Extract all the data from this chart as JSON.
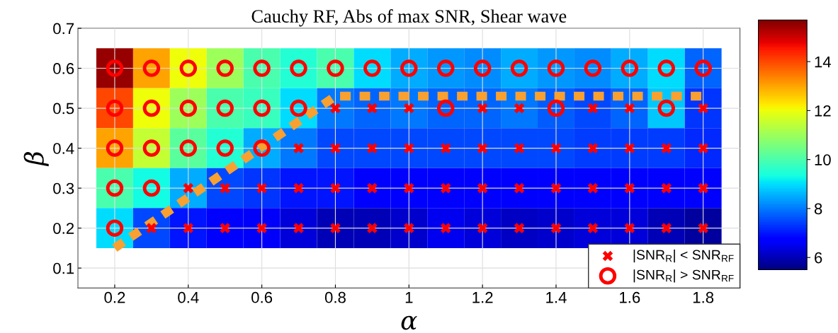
{
  "chart_data": {
    "type": "heatmap",
    "title": "Cauchy RF, Abs of max SNR, Shear wave",
    "xlabel": "α",
    "ylabel": "β",
    "x": [
      0.2,
      0.3,
      0.4,
      0.5,
      0.6,
      0.7,
      0.8,
      0.9,
      1.0,
      1.1,
      1.2,
      1.3,
      1.4,
      1.5,
      1.6,
      1.7,
      1.8
    ],
    "y": [
      0.6,
      0.5,
      0.4,
      0.3,
      0.2
    ],
    "cells": [
      [
        15.5,
        13,
        12,
        11,
        10,
        9.5,
        10,
        9,
        8.5,
        8.3,
        8.2,
        8.5,
        8.3,
        8.2,
        8.5,
        9,
        7.8
      ],
      [
        14,
        12,
        11,
        10,
        9.8,
        9,
        8,
        7.8,
        8,
        7.8,
        7.8,
        8,
        7.7,
        7.5,
        7.8,
        8.8,
        7.3
      ],
      [
        13,
        11.5,
        10.2,
        9.5,
        8.5,
        8,
        7.5,
        7.5,
        7.5,
        7.5,
        7.5,
        7.5,
        7.5,
        7.4,
        7.4,
        7.4,
        7.2
      ],
      [
        10,
        9.3,
        8.5,
        7.5,
        7.3,
        7,
        7,
        6.8,
        6.8,
        6.8,
        6.8,
        6.8,
        6.8,
        6.8,
        6.8,
        6.8,
        6.8
      ],
      [
        9,
        7.5,
        7,
        6.8,
        6.6,
        6.3,
        6,
        6,
        6.2,
        6.5,
        6.3,
        6.1,
        6.2,
        6.3,
        6.3,
        6.0,
        5.8
      ]
    ],
    "clim": [
      5.5,
      15.7
    ],
    "cticks": [
      6,
      8,
      10,
      12,
      14
    ],
    "series": [
      {
        "type": "scatter",
        "name": "|SNR$_{R}$| < SNR$_{RF}$",
        "color": "#ff0000",
        "marker": "cross",
        "x": [
          0.3,
          0.4,
          0.5,
          0.6,
          0.7,
          0.8,
          0.9,
          1.0,
          1.1,
          1.2,
          1.3,
          1.4,
          1.5,
          1.6,
          1.7,
          1.8,
          0.4,
          0.5,
          0.6,
          0.7,
          0.8,
          0.9,
          1.0,
          1.1,
          1.2,
          1.3,
          1.4,
          1.5,
          1.6,
          1.7,
          1.8,
          0.7,
          0.8,
          0.9,
          1.0,
          1.1,
          1.2,
          1.3,
          1.4,
          1.5,
          1.6,
          1.7,
          1.8,
          0.8,
          0.9,
          1.0,
          1.2,
          1.3,
          1.5,
          1.6,
          1.8
        ],
        "values": [
          0.2,
          0.2,
          0.2,
          0.2,
          0.2,
          0.2,
          0.2,
          0.2,
          0.2,
          0.2,
          0.2,
          0.2,
          0.2,
          0.2,
          0.2,
          0.2,
          0.3,
          0.3,
          0.3,
          0.3,
          0.3,
          0.3,
          0.3,
          0.3,
          0.3,
          0.3,
          0.3,
          0.3,
          0.3,
          0.3,
          0.3,
          0.4,
          0.4,
          0.4,
          0.4,
          0.4,
          0.4,
          0.4,
          0.4,
          0.4,
          0.4,
          0.4,
          0.4,
          0.5,
          0.5,
          0.5,
          0.5,
          0.5,
          0.5,
          0.5,
          0.5
        ]
      },
      {
        "type": "scatter",
        "name": "|SNR$_{R}$| > SNR$_{RF}$",
        "color": "#ff0000",
        "marker": "circle",
        "x": [
          0.2,
          0.2,
          0.3,
          0.2,
          0.3,
          0.4,
          0.5,
          0.6,
          0.2,
          0.3,
          0.4,
          0.5,
          0.6,
          0.7,
          1.1,
          1.4,
          1.7,
          0.2,
          0.3,
          0.4,
          0.5,
          0.6,
          0.7,
          0.8,
          0.9,
          1.0,
          1.1,
          1.2,
          1.3,
          1.4,
          1.5,
          1.6,
          1.7,
          1.8
        ],
        "values": [
          0.2,
          0.3,
          0.3,
          0.4,
          0.4,
          0.4,
          0.4,
          0.4,
          0.5,
          0.5,
          0.5,
          0.5,
          0.5,
          0.5,
          0.5,
          0.5,
          0.5,
          0.6,
          0.6,
          0.6,
          0.6,
          0.6,
          0.6,
          0.6,
          0.6,
          0.6,
          0.6,
          0.6,
          0.6,
          0.6,
          0.6,
          0.6,
          0.6,
          0.6
        ]
      },
      {
        "type": "line",
        "color": "#f8a030",
        "line_style": "dotted",
        "x": [
          0.2,
          0.8,
          1.8
        ],
        "values": [
          0.15,
          0.53,
          0.53
        ]
      }
    ],
    "xlim": [
      0.1,
      1.9
    ],
    "ylim": [
      0.05,
      0.7
    ],
    "xticks": [
      0.2,
      0.4,
      0.6,
      0.8,
      1,
      1.2,
      1.4,
      1.6,
      1.8
    ],
    "yticks": [
      0.1,
      0.2,
      0.3,
      0.4,
      0.5,
      0.6,
      0.7
    ],
    "grid": true,
    "legend": "bottom right"
  }
}
